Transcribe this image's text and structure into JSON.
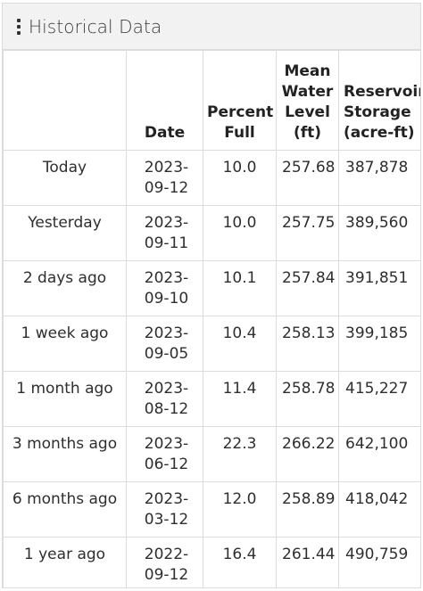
{
  "panel": {
    "title": "Historical Data"
  },
  "table": {
    "headers": {
      "period": "",
      "date": "Date",
      "percent_full": "Percent Full",
      "mean_water_level": "Mean Water Level (ft)",
      "reservoir_storage": "Reservoir Storage (acre-ft)"
    },
    "rows": [
      {
        "period": "Today",
        "date_line1": "2023-",
        "date_line2": "09-12",
        "percent_full": "10.0",
        "mean_water_level": "257.68",
        "reservoir_storage": "387,878"
      },
      {
        "period": "Yesterday",
        "date_line1": "2023-",
        "date_line2": "09-11",
        "percent_full": "10.0",
        "mean_water_level": "257.75",
        "reservoir_storage": "389,560"
      },
      {
        "period": "2 days ago",
        "date_line1": "2023-",
        "date_line2": "09-10",
        "percent_full": "10.1",
        "mean_water_level": "257.84",
        "reservoir_storage": "391,851"
      },
      {
        "period": "1 week ago",
        "date_line1": "2023-",
        "date_line2": "09-05",
        "percent_full": "10.4",
        "mean_water_level": "258.13",
        "reservoir_storage": "399,185"
      },
      {
        "period": "1 month ago",
        "date_line1": "2023-",
        "date_line2": "08-12",
        "percent_full": "11.4",
        "mean_water_level": "258.78",
        "reservoir_storage": "415,227"
      },
      {
        "period": "3 months ago",
        "date_line1": "2023-",
        "date_line2": "06-12",
        "percent_full": "22.3",
        "mean_water_level": "266.22",
        "reservoir_storage": "642,100"
      },
      {
        "period": "6 months ago",
        "date_line1": "2023-",
        "date_line2": "03-12",
        "percent_full": "12.0",
        "mean_water_level": "258.89",
        "reservoir_storage": "418,042"
      },
      {
        "period": "1 year ago",
        "date_line1": "2022-",
        "date_line2": "09-12",
        "percent_full": "16.4",
        "mean_water_level": "261.44",
        "reservoir_storage": "490,759"
      }
    ]
  }
}
